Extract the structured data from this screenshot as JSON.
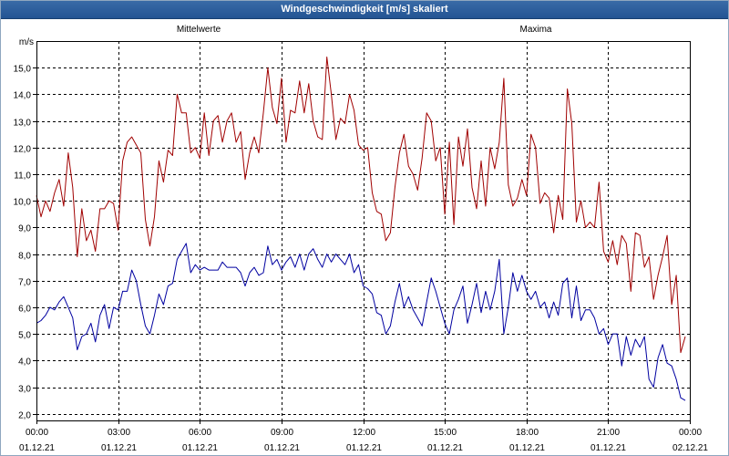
{
  "chart_data": {
    "type": "line",
    "title": "Windgeschwindigkeit [m/s] skaliert",
    "ylabel": "m/s",
    "ylim": [
      1.75,
      16
    ],
    "yticks": [
      2,
      3,
      4,
      5,
      6,
      7,
      8,
      9,
      10,
      11,
      12,
      13,
      14,
      15
    ],
    "yticklabels": [
      "2,0",
      "3,0",
      "4,0",
      "5,0",
      "6,0",
      "7,0",
      "8,0",
      "9,0",
      "10,0",
      "11,0",
      "12,0",
      "13,0",
      "14,0",
      "15,0"
    ],
    "xlim": [
      "01.12.21 00:00",
      "02.12.21 00:00"
    ],
    "xticks": [
      {
        "time": "00:00",
        "date": "01.12.21"
      },
      {
        "time": "03:00",
        "date": "01.12.21"
      },
      {
        "time": "06:00",
        "date": "01.12.21"
      },
      {
        "time": "09:00",
        "date": "01.12.21"
      },
      {
        "time": "12:00",
        "date": "01.12.21"
      },
      {
        "time": "15:00",
        "date": "01.12.21"
      },
      {
        "time": "18:00",
        "date": "01.12.21"
      },
      {
        "time": "21:00",
        "date": "01.12.21"
      },
      {
        "time": "00:00",
        "date": "02.12.21"
      }
    ],
    "grid": true,
    "legend_position": "top",
    "x": [
      "00:00",
      "00:10",
      "00:20",
      "00:30",
      "00:40",
      "00:50",
      "01:00",
      "01:10",
      "01:20",
      "01:30",
      "01:40",
      "01:50",
      "02:00",
      "02:10",
      "02:20",
      "02:30",
      "02:40",
      "02:50",
      "03:00",
      "03:10",
      "03:20",
      "03:30",
      "03:40",
      "03:50",
      "04:00",
      "04:10",
      "04:20",
      "04:30",
      "04:40",
      "04:50",
      "05:00",
      "05:10",
      "05:20",
      "05:30",
      "05:40",
      "05:50",
      "06:00",
      "06:10",
      "06:20",
      "06:30",
      "06:40",
      "06:50",
      "07:00",
      "07:10",
      "07:20",
      "07:30",
      "07:40",
      "07:50",
      "08:00",
      "08:10",
      "08:20",
      "08:30",
      "08:40",
      "08:50",
      "09:00",
      "09:10",
      "09:20",
      "09:30",
      "09:40",
      "09:50",
      "10:00",
      "10:10",
      "10:20",
      "10:30",
      "10:40",
      "10:50",
      "11:00",
      "11:10",
      "11:20",
      "11:30",
      "11:40",
      "11:50",
      "12:00",
      "12:10",
      "12:20",
      "12:30",
      "12:40",
      "12:50",
      "13:00",
      "13:10",
      "13:20",
      "13:30",
      "13:40",
      "13:50",
      "14:00",
      "14:10",
      "14:20",
      "14:30",
      "14:40",
      "14:50",
      "15:00",
      "15:10",
      "15:20",
      "15:30",
      "15:40",
      "15:50",
      "16:00",
      "16:10",
      "16:20",
      "16:30",
      "16:40",
      "16:50",
      "17:00",
      "17:10",
      "17:20",
      "17:30",
      "17:40",
      "17:50",
      "18:00",
      "18:10",
      "18:20",
      "18:30",
      "18:40",
      "18:50",
      "19:00",
      "19:10",
      "19:20",
      "19:30",
      "19:40",
      "19:50",
      "20:00",
      "20:10",
      "20:20",
      "20:30",
      "20:40",
      "20:50",
      "21:00",
      "21:10",
      "21:20",
      "21:30",
      "21:40",
      "21:50",
      "22:00",
      "22:10",
      "22:20",
      "22:30",
      "22:40",
      "22:50",
      "23:00",
      "23:10",
      "23:20",
      "23:30",
      "23:40",
      "23:50"
    ],
    "series": [
      {
        "name": "Mittelwerte",
        "color": "#0000a0",
        "values": [
          5.4,
          5.5,
          5.7,
          6.0,
          5.9,
          6.2,
          6.4,
          6.0,
          5.6,
          4.4,
          4.9,
          5.0,
          5.4,
          4.7,
          5.7,
          6.1,
          5.2,
          6.0,
          5.9,
          6.6,
          6.6,
          7.4,
          7.0,
          6.1,
          5.3,
          5.0,
          5.7,
          6.5,
          6.1,
          6.8,
          6.9,
          7.8,
          8.1,
          8.4,
          7.3,
          7.6,
          7.4,
          7.5,
          7.4,
          7.4,
          7.4,
          7.7,
          7.5,
          7.5,
          7.5,
          7.3,
          6.8,
          7.3,
          7.5,
          7.2,
          7.3,
          8.3,
          7.6,
          7.8,
          7.4,
          7.7,
          7.9,
          7.5,
          8.0,
          7.4,
          8.0,
          8.2,
          7.8,
          7.5,
          8.0,
          7.7,
          8.0,
          7.8,
          7.6,
          8.0,
          7.3,
          7.6,
          6.8,
          6.7,
          6.5,
          5.8,
          5.7,
          5.0,
          5.3,
          6.2,
          6.9,
          6.0,
          6.4,
          5.9,
          5.6,
          5.3,
          6.2,
          7.1,
          6.6,
          6.0,
          5.4,
          5.0,
          5.9,
          6.3,
          6.8,
          5.4,
          6.1,
          6.9,
          5.8,
          6.6,
          5.9,
          6.6,
          7.8,
          5.0,
          6.0,
          7.3,
          6.6,
          7.2,
          6.6,
          6.3,
          6.6,
          6.0,
          6.2,
          5.6,
          6.2,
          5.7,
          6.9,
          7.1,
          5.6,
          6.8,
          5.5,
          5.9,
          5.9,
          5.6,
          5.0,
          5.2,
          4.6,
          5.0,
          5.0,
          3.8,
          4.9,
          4.2,
          4.8,
          4.5,
          4.9,
          3.3,
          3.0,
          4.1,
          4.6,
          3.9,
          3.8,
          3.3,
          2.6,
          2.5
        ]
      },
      {
        "name": "Maxima",
        "color": "#a00000",
        "values": [
          10.2,
          9.4,
          10.0,
          9.6,
          10.3,
          10.8,
          9.8,
          11.8,
          10.5,
          7.9,
          9.7,
          8.5,
          8.9,
          8.1,
          9.7,
          9.7,
          10.0,
          9.9,
          8.9,
          11.5,
          12.2,
          12.4,
          12.1,
          11.8,
          9.3,
          8.3,
          9.4,
          11.5,
          10.7,
          11.9,
          11.7,
          14.0,
          13.3,
          13.3,
          11.8,
          12.0,
          11.6,
          13.3,
          11.7,
          13.0,
          13.2,
          12.2,
          13.0,
          13.3,
          12.2,
          12.6,
          10.8,
          11.8,
          12.4,
          11.8,
          13.3,
          15.0,
          13.5,
          12.9,
          14.6,
          12.2,
          13.4,
          13.3,
          14.5,
          13.3,
          14.4,
          13.0,
          12.4,
          12.3,
          15.4,
          14.0,
          12.3,
          13.1,
          12.9,
          14.0,
          13.4,
          12.1,
          11.9,
          12.0,
          10.3,
          9.6,
          9.5,
          8.5,
          8.8,
          10.5,
          11.8,
          12.5,
          11.3,
          11.0,
          10.4,
          11.6,
          13.3,
          13.0,
          11.5,
          12.0,
          9.5,
          12.2,
          9.1,
          12.4,
          11.3,
          12.7,
          10.5,
          9.7,
          11.5,
          9.8,
          12.0,
          11.2,
          12.2,
          14.6,
          10.6,
          9.8,
          10.1,
          10.8,
          10.2,
          12.5,
          12.0,
          9.9,
          10.3,
          10.1,
          8.8,
          10.2,
          9.3,
          14.2,
          12.9,
          9.2,
          10.0,
          9.0,
          9.2,
          9.0,
          10.7,
          8.1,
          7.7,
          8.5,
          7.6,
          8.7,
          8.4,
          6.6,
          8.8,
          8.7,
          7.5,
          7.9,
          6.3,
          7.2,
          7.9,
          8.7,
          6.1,
          7.2,
          4.3,
          4.9
        ]
      }
    ]
  }
}
